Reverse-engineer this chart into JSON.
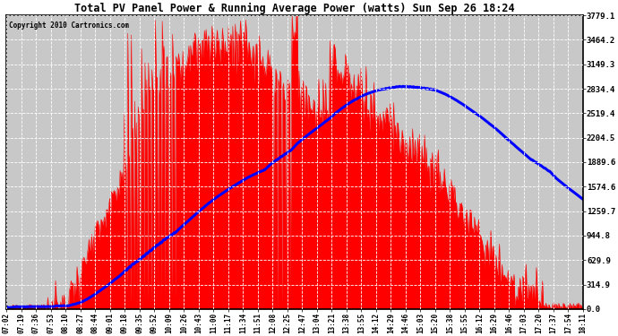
{
  "title": "Total PV Panel Power & Running Average Power (watts) Sun Sep 26 18:24",
  "copyright": "Copyright 2010 Cartronics.com",
  "yticks": [
    0.0,
    314.9,
    629.9,
    944.8,
    1259.7,
    1574.6,
    1889.6,
    2204.5,
    2519.4,
    2834.4,
    3149.3,
    3464.2,
    3779.1
  ],
  "ymax": 3779.1,
  "ymin": 0.0,
  "x_labels": [
    "07:02",
    "07:19",
    "07:36",
    "07:53",
    "08:10",
    "08:27",
    "08:44",
    "09:01",
    "09:18",
    "09:35",
    "09:52",
    "10:09",
    "10:26",
    "10:43",
    "11:00",
    "11:17",
    "11:34",
    "11:51",
    "12:08",
    "12:25",
    "12:47",
    "13:04",
    "13:21",
    "13:38",
    "13:55",
    "14:12",
    "14:29",
    "14:46",
    "15:03",
    "15:20",
    "15:38",
    "15:55",
    "16:12",
    "16:29",
    "16:46",
    "17:03",
    "17:20",
    "17:37",
    "17:54",
    "18:11"
  ],
  "pv_color": "#FF0000",
  "avg_color": "#0000FF",
  "bg_color": "#FFFFFF",
  "plot_bg_color": "#C8C8C8",
  "grid_color": "#FFFFFF",
  "title_color": "#000000",
  "border_color": "#000000"
}
